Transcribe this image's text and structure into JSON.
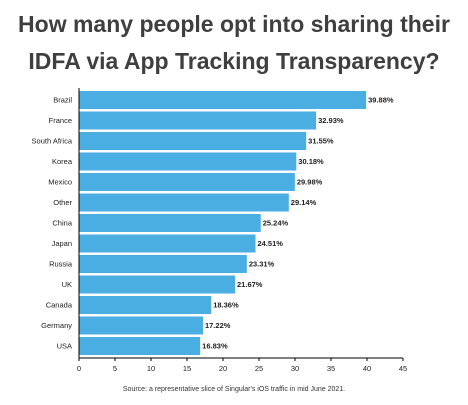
{
  "title_lines": [
    "How many people opt into sharing their",
    "IDFA via App Tracking Transparency?"
  ],
  "source": "Source: a representative slice of Singular's iOS traffic in mid June 2021.",
  "colors": {
    "bar": "#4aaee3",
    "title": "#3f3f3f",
    "text": "#222222",
    "axis": "#000000"
  },
  "chart_data": {
    "type": "bar",
    "orientation": "horizontal",
    "categories": [
      "Brazil",
      "France",
      "South Africa",
      "Korea",
      "Mexico",
      "Other",
      "China",
      "Japan",
      "Russia",
      "UK",
      "Canada",
      "Germany",
      "USA"
    ],
    "values": [
      39.88,
      32.93,
      31.55,
      30.18,
      29.98,
      29.14,
      25.24,
      24.51,
      23.31,
      21.67,
      18.36,
      17.22,
      16.83
    ],
    "data_labels": [
      "39.88%",
      "32.93%",
      "31.55%",
      "30.18%",
      "29.98%",
      "29.14%",
      "25.24%",
      "24.51%",
      "23.31%",
      "21.67%",
      "18.36%",
      "17.22%",
      "16.83%"
    ],
    "xlim": [
      0,
      45
    ],
    "xticks": [
      0,
      5,
      10,
      15,
      20,
      25,
      30,
      35,
      40,
      45
    ],
    "grid": false,
    "legend": "none"
  }
}
